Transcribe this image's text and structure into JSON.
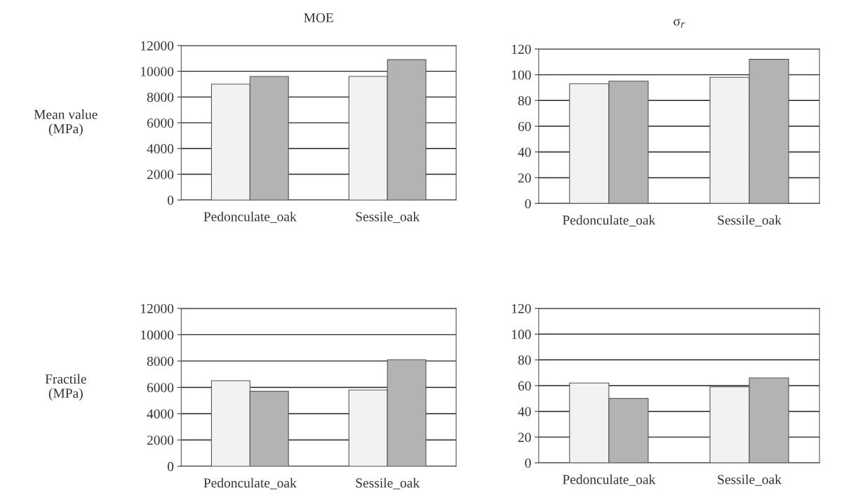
{
  "chart_data": [
    {
      "type": "bar",
      "title": "MOE",
      "ylabel": "Mean value\n(MPa)",
      "categories": [
        "Pedonculate_oak",
        "Sessile_oak"
      ],
      "series": [
        {
          "color": "#f2f2f2",
          "values": [
            9000,
            9600
          ]
        },
        {
          "color": "#b3b3b3",
          "values": [
            9600,
            10900
          ]
        }
      ],
      "ylim": [
        0,
        12000
      ],
      "yticks": [
        0,
        2000,
        4000,
        6000,
        8000,
        10000,
        12000
      ],
      "grid": "y",
      "legend": false
    },
    {
      "type": "bar",
      "title": "σ$_{r}$",
      "categories": [
        "Pedonculate_oak",
        "Sessile_oak"
      ],
      "series": [
        {
          "color": "#f2f2f2",
          "values": [
            93,
            98
          ]
        },
        {
          "color": "#b3b3b3",
          "values": [
            95,
            112
          ]
        }
      ],
      "ylim": [
        0,
        120
      ],
      "yticks": [
        0,
        20,
        40,
        60,
        80,
        100,
        120
      ],
      "grid": "y",
      "legend": false
    },
    {
      "type": "bar",
      "ylabel": "Fractile\n(MPa)",
      "categories": [
        "Pedonculate_oak",
        "Sessile_oak"
      ],
      "series": [
        {
          "color": "#f2f2f2",
          "values": [
            6500,
            5800
          ]
        },
        {
          "color": "#b3b3b3",
          "values": [
            5700,
            8100
          ]
        }
      ],
      "ylim": [
        0,
        12000
      ],
      "yticks": [
        0,
        2000,
        4000,
        6000,
        8000,
        10000,
        12000
      ],
      "grid": "y",
      "legend": false
    },
    {
      "type": "bar",
      "categories": [
        "Pedonculate_oak",
        "Sessile_oak"
      ],
      "series": [
        {
          "color": "#f2f2f2",
          "values": [
            62,
            59
          ]
        },
        {
          "color": "#b3b3b3",
          "values": [
            50,
            66
          ]
        }
      ],
      "ylim": [
        0,
        120
      ],
      "yticks": [
        0,
        20,
        40,
        60,
        80,
        100,
        120
      ],
      "grid": "y",
      "legend": false
    }
  ]
}
